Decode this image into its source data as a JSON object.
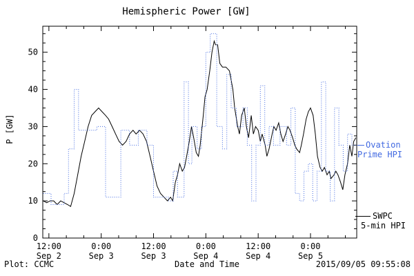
{
  "title": "Hemispheric Power [GW]",
  "footer": {
    "left": "Plot: CCMC",
    "right": "2015/09/05 09:55:08"
  },
  "legend": {
    "ovation": {
      "line1": "Ovation",
      "line2": "Prime HPI",
      "color": "#4169e1"
    },
    "swpc": {
      "line1": "SWPC",
      "line2": "5-min HPI",
      "color": "#000000"
    }
  },
  "chart_data": {
    "type": "line",
    "title": "Hemispheric Power [GW]",
    "xlabel": "Date and Time",
    "ylabel": "P [GW]",
    "ylim": [
      0,
      57
    ],
    "xlim_hours": [
      10.6,
      82.6
    ],
    "grid": false,
    "legend_position": "right-outside",
    "y_ticks": [
      0,
      10,
      20,
      30,
      40,
      50
    ],
    "x_ticks": [
      {
        "hour": 12,
        "time": "12:00",
        "date": "Sep 2"
      },
      {
        "hour": 24,
        "time": "0:00",
        "date": "Sep 3"
      },
      {
        "hour": 36,
        "time": "12:00",
        "date": "Sep 3"
      },
      {
        "hour": 48,
        "time": "0:00",
        "date": "Sep 4"
      },
      {
        "hour": 60,
        "time": "12:00",
        "date": "Sep 4"
      },
      {
        "hour": 72,
        "time": "0:00",
        "date": "Sep 5"
      }
    ],
    "series": [
      {
        "name": "SWPC 5-min HPI",
        "color": "#000000",
        "style": "solid",
        "step": false,
        "points": [
          [
            10.7,
            10
          ],
          [
            11.5,
            9.5
          ],
          [
            12.3,
            10
          ],
          [
            13.1,
            10
          ],
          [
            13.9,
            9
          ],
          [
            14.7,
            10
          ],
          [
            16.3,
            9
          ],
          [
            17.0,
            8.5
          ],
          [
            17.8,
            12
          ],
          [
            18.6,
            17
          ],
          [
            19.4,
            22
          ],
          [
            20.2,
            26
          ],
          [
            21.0,
            30
          ],
          [
            21.8,
            33
          ],
          [
            22.6,
            34
          ],
          [
            23.4,
            35
          ],
          [
            24.2,
            34
          ],
          [
            25.0,
            33
          ],
          [
            25.7,
            32
          ],
          [
            26.5,
            30
          ],
          [
            27.3,
            28
          ],
          [
            28.1,
            26
          ],
          [
            28.9,
            25
          ],
          [
            29.7,
            26
          ],
          [
            30.5,
            28
          ],
          [
            31.3,
            29
          ],
          [
            32.0,
            28
          ],
          [
            32.8,
            29
          ],
          [
            33.6,
            28
          ],
          [
            34.4,
            26
          ],
          [
            35.2,
            22
          ],
          [
            36.0,
            18
          ],
          [
            36.8,
            14
          ],
          [
            37.6,
            12
          ],
          [
            38.4,
            11
          ],
          [
            39.2,
            10
          ],
          [
            39.9,
            11
          ],
          [
            40.4,
            10
          ],
          [
            41.0,
            15
          ],
          [
            41.5,
            17
          ],
          [
            42.0,
            20
          ],
          [
            42.6,
            18
          ],
          [
            43.1,
            19
          ],
          [
            43.6,
            22
          ],
          [
            44.2,
            26
          ],
          [
            44.7,
            30
          ],
          [
            45.2,
            27
          ],
          [
            45.8,
            23
          ],
          [
            46.3,
            22
          ],
          [
            46.7,
            25
          ],
          [
            47.4,
            33
          ],
          [
            47.8,
            38
          ],
          [
            48.3,
            40
          ],
          [
            48.9,
            45
          ],
          [
            49.4,
            50
          ],
          [
            49.9,
            53
          ],
          [
            50.2,
            52
          ],
          [
            50.7,
            52
          ],
          [
            51.2,
            47
          ],
          [
            51.8,
            46
          ],
          [
            52.6,
            46
          ],
          [
            53.4,
            45
          ],
          [
            54.2,
            40
          ],
          [
            54.6,
            35
          ],
          [
            55.3,
            30
          ],
          [
            55.7,
            28
          ],
          [
            56.2,
            33
          ],
          [
            56.8,
            35
          ],
          [
            57.3,
            30
          ],
          [
            57.8,
            27
          ],
          [
            58.4,
            33
          ],
          [
            58.9,
            28
          ],
          [
            59.4,
            30
          ],
          [
            60.0,
            29
          ],
          [
            60.5,
            26
          ],
          [
            60.9,
            28
          ],
          [
            61.6,
            25
          ],
          [
            62.0,
            22
          ],
          [
            62.5,
            24
          ],
          [
            63.2,
            28
          ],
          [
            63.6,
            30
          ],
          [
            64.1,
            29
          ],
          [
            64.7,
            31
          ],
          [
            65.2,
            28
          ],
          [
            65.7,
            26
          ],
          [
            66.3,
            28
          ],
          [
            66.8,
            30
          ],
          [
            67.3,
            29
          ],
          [
            67.9,
            27
          ],
          [
            68.4,
            25
          ],
          [
            68.8,
            24
          ],
          [
            69.5,
            23
          ],
          [
            69.9,
            25
          ],
          [
            70.4,
            28
          ],
          [
            71.0,
            32
          ],
          [
            71.5,
            34
          ],
          [
            72.0,
            35
          ],
          [
            72.6,
            33
          ],
          [
            73.1,
            28
          ],
          [
            73.6,
            22
          ],
          [
            74.2,
            19
          ],
          [
            74.7,
            18
          ],
          [
            75.2,
            19
          ],
          [
            75.8,
            17
          ],
          [
            76.3,
            18
          ],
          [
            76.7,
            16
          ],
          [
            77.4,
            17
          ],
          [
            77.8,
            18
          ],
          [
            78.3,
            17
          ],
          [
            78.9,
            15
          ],
          [
            79.4,
            13
          ],
          [
            79.9,
            17
          ],
          [
            80.5,
            20
          ],
          [
            81.0,
            25
          ],
          [
            81.5,
            22
          ],
          [
            81.9,
            26
          ],
          [
            82.4,
            27
          ]
        ]
      },
      {
        "name": "Ovation Prime HPI",
        "color": "#4169e1",
        "style": "dotted",
        "step": true,
        "points": [
          [
            10.7,
            12
          ],
          [
            12.5,
            9
          ],
          [
            15.5,
            12
          ],
          [
            16.5,
            24
          ],
          [
            17.8,
            40
          ],
          [
            18.8,
            29
          ],
          [
            23.0,
            30
          ],
          [
            25.0,
            11
          ],
          [
            28.5,
            29
          ],
          [
            30.5,
            25
          ],
          [
            32.5,
            29
          ],
          [
            34.5,
            25
          ],
          [
            36.0,
            11
          ],
          [
            39.5,
            10
          ],
          [
            40.5,
            18
          ],
          [
            41.5,
            11
          ],
          [
            43.0,
            42
          ],
          [
            44.0,
            20
          ],
          [
            44.8,
            30
          ],
          [
            46.0,
            24
          ],
          [
            47.0,
            30
          ],
          [
            48.0,
            50
          ],
          [
            49.0,
            55
          ],
          [
            50.5,
            30
          ],
          [
            51.8,
            24
          ],
          [
            52.8,
            44
          ],
          [
            53.8,
            35
          ],
          [
            55.0,
            30
          ],
          [
            56.5,
            35
          ],
          [
            57.5,
            25
          ],
          [
            58.5,
            10
          ],
          [
            59.5,
            25
          ],
          [
            60.5,
            41
          ],
          [
            61.5,
            25
          ],
          [
            62.5,
            30
          ],
          [
            63.5,
            25
          ],
          [
            65.0,
            30
          ],
          [
            66.5,
            25
          ],
          [
            67.5,
            35
          ],
          [
            68.5,
            12
          ],
          [
            69.5,
            10
          ],
          [
            70.5,
            18
          ],
          [
            71.5,
            20
          ],
          [
            72.5,
            10
          ],
          [
            73.5,
            18
          ],
          [
            74.5,
            42
          ],
          [
            75.5,
            18
          ],
          [
            76.5,
            10
          ],
          [
            77.5,
            35
          ],
          [
            78.5,
            25
          ],
          [
            79.5,
            18
          ],
          [
            80.5,
            28
          ],
          [
            81.5,
            25
          ],
          [
            82.5,
            25
          ]
        ]
      }
    ]
  }
}
